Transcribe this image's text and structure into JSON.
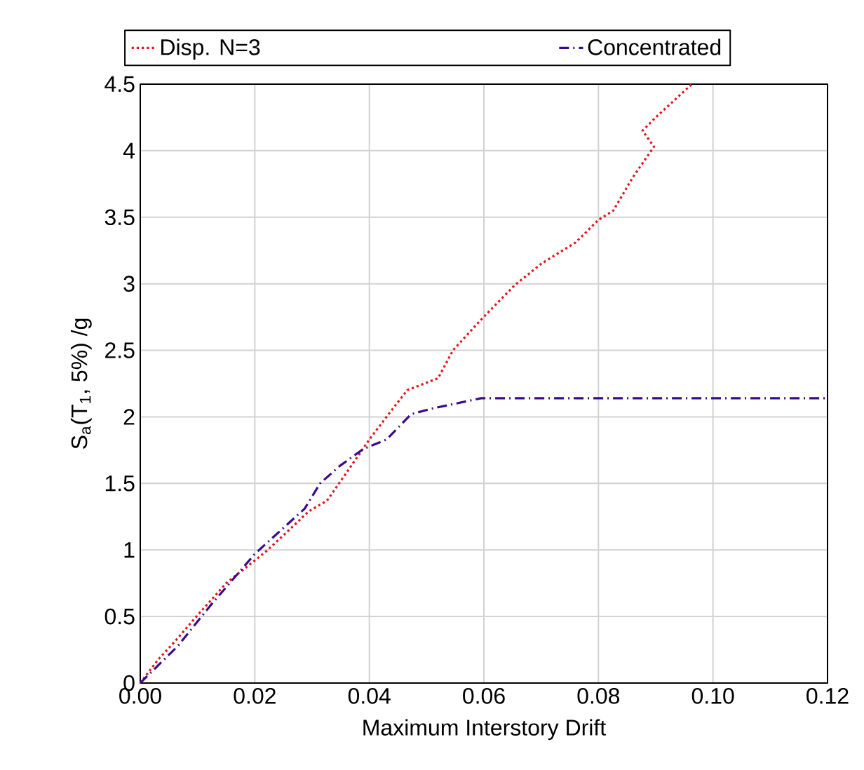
{
  "chart_data": {
    "type": "line",
    "xlabel": "Maximum Interstory Drift",
    "ylabel": "S$_{a}$(T$_{1}$, 5%) /g",
    "xlim": [
      0,
      0.12
    ],
    "ylim": [
      0,
      4.5
    ],
    "xticks": [
      {
        "value": 0,
        "label": "0.00"
      },
      0.02,
      0.04,
      0.06,
      0.08,
      {
        "value": 0.1,
        "label": "0.10"
      },
      {
        "value": 0.12,
        "label": "0.12"
      }
    ],
    "yticks": [
      0,
      0.5,
      1,
      1.5,
      2,
      2.5,
      3,
      3.5,
      4,
      4.5
    ],
    "grid": true,
    "legend": "top",
    "marker": "none",
    "series": [
      {
        "name": "Disp. N=3",
        "color": "#e3141b",
        "line_style": "dotted",
        "x": [
          0,
          0.0032,
          0.006,
          0.0098,
          0.015,
          0.022,
          0.026,
          0.0294,
          0.0326,
          0.036,
          0.04,
          0.043,
          0.0466,
          0.052,
          0.0546,
          0.0595,
          0.0654,
          0.07,
          0.076,
          0.08,
          0.0826,
          0.086,
          0.0897,
          0.0877,
          0.09,
          0.0963
        ],
        "values": [
          0,
          0.18,
          0.31,
          0.5,
          0.75,
          0.99,
          1.15,
          1.29,
          1.37,
          1.58,
          1.83,
          2.0,
          2.2,
          2.29,
          2.5,
          2.73,
          2.99,
          3.15,
          3.31,
          3.48,
          3.55,
          3.8,
          4.03,
          4.15,
          4.25,
          4.5
        ]
      },
      {
        "name": "Concentrated",
        "color": "#3a0a8c",
        "line_style": "dashdot",
        "x": [
          0,
          0.0066,
          0.0122,
          0.02,
          0.0287,
          0.0314,
          0.0348,
          0.039,
          0.043,
          0.0473,
          0.0507,
          0.0595,
          0.12
        ],
        "values": [
          0,
          0.28,
          0.58,
          0.97,
          1.31,
          1.5,
          1.63,
          1.76,
          1.83,
          2.02,
          2.06,
          2.14,
          2.14
        ]
      }
    ]
  }
}
